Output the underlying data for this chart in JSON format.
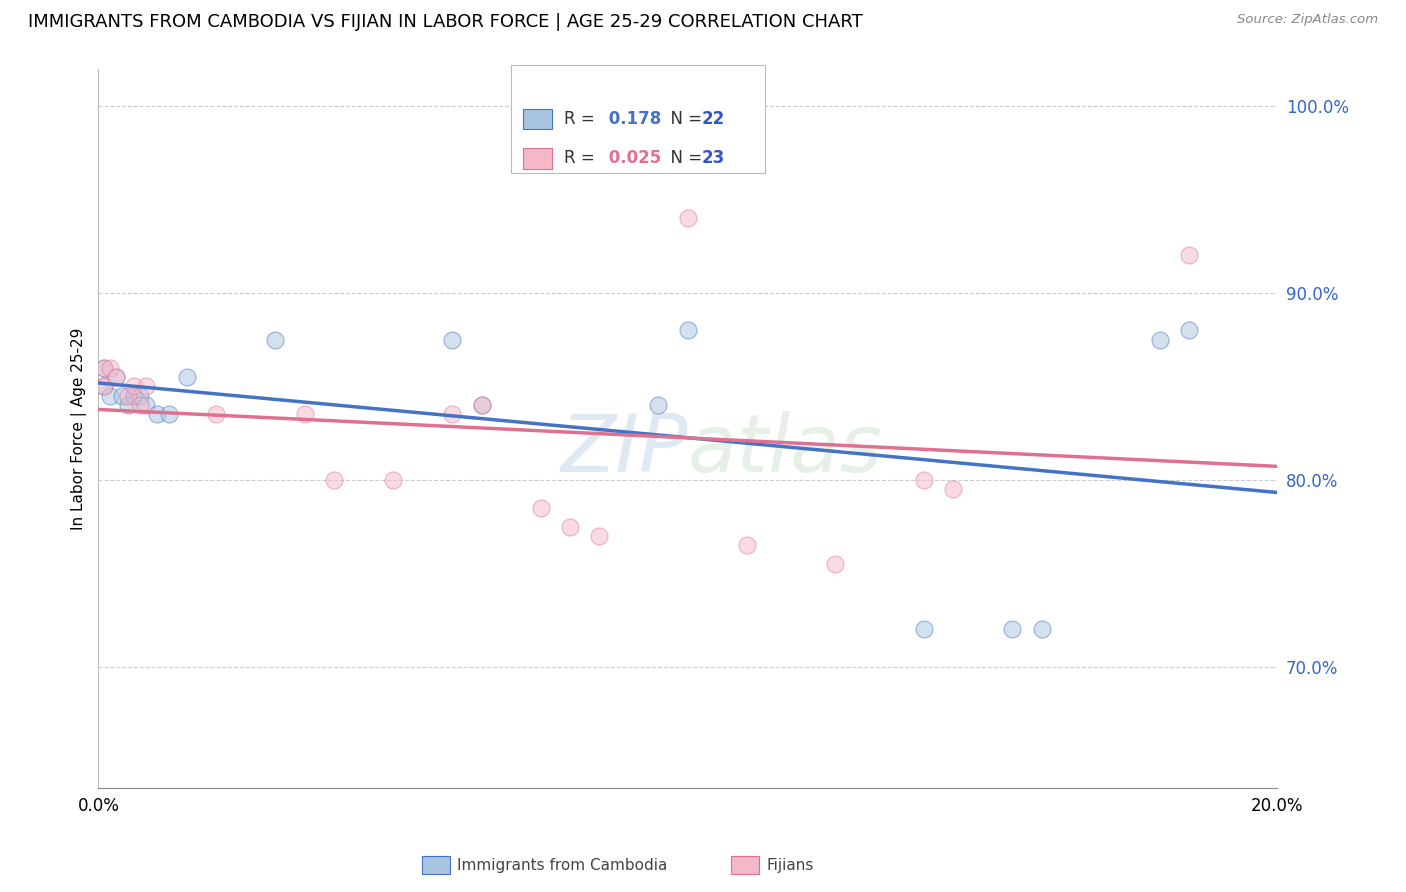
{
  "title": "IMMIGRANTS FROM CAMBODIA VS FIJIAN IN LABOR FORCE | AGE 25-29 CORRELATION CHART",
  "source": "Source: ZipAtlas.com",
  "ylabel": "In Labor Force | Age 25-29",
  "watermark": "ZIPatlas",
  "R_cambodia": 0.178,
  "N_cambodia": 22,
  "R_fijian": 0.025,
  "N_fijian": 23,
  "xlim": [
    0.0,
    0.2
  ],
  "ylim": [
    0.635,
    1.02
  ],
  "yticks": [
    0.7,
    0.8,
    0.9,
    1.0
  ],
  "ytick_labels": [
    "70.0%",
    "80.0%",
    "90.0%",
    "100.0%"
  ],
  "xticks": [
    0.0,
    0.05,
    0.1,
    0.15,
    0.2
  ],
  "xtick_labels": [
    "0.0%",
    "",
    "",
    "",
    "20.0%"
  ],
  "color_cambodia": "#a8c4e0",
  "color_fijian": "#f4b8c8",
  "line_color_cambodia": "#4472c4",
  "line_color_fijian": "#e07090",
  "legend_N_color": "#3355cc",
  "cambodia_x": [
    0.001,
    0.001,
    0.002,
    0.003,
    0.004,
    0.005,
    0.006,
    0.007,
    0.008,
    0.01,
    0.012,
    0.015,
    0.03,
    0.06,
    0.065,
    0.095,
    0.1,
    0.14,
    0.155,
    0.16,
    0.18,
    0.185
  ],
  "cambodia_y": [
    0.86,
    0.85,
    0.845,
    0.855,
    0.845,
    0.84,
    0.845,
    0.845,
    0.84,
    0.835,
    0.835,
    0.855,
    0.875,
    0.875,
    0.84,
    0.84,
    0.88,
    0.72,
    0.72,
    0.72,
    0.875,
    0.88
  ],
  "fijian_x": [
    0.001,
    0.001,
    0.002,
    0.003,
    0.005,
    0.006,
    0.007,
    0.008,
    0.02,
    0.035,
    0.04,
    0.05,
    0.06,
    0.065,
    0.075,
    0.08,
    0.085,
    0.1,
    0.11,
    0.125,
    0.14,
    0.145,
    0.185
  ],
  "fijian_y": [
    0.86,
    0.85,
    0.86,
    0.855,
    0.845,
    0.85,
    0.84,
    0.85,
    0.835,
    0.835,
    0.8,
    0.8,
    0.835,
    0.84,
    0.785,
    0.775,
    0.77,
    0.94,
    0.765,
    0.755,
    0.8,
    0.795,
    0.92
  ],
  "scatter_size": 150,
  "alpha_scatter": 0.5
}
